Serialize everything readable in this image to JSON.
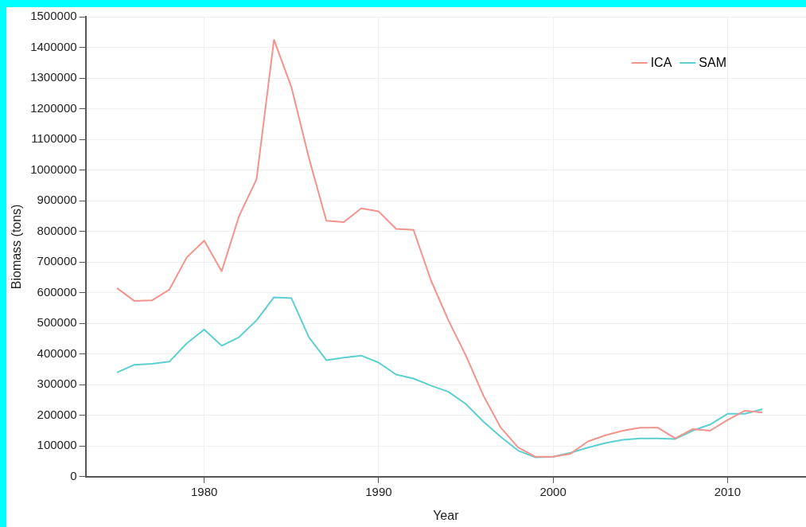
{
  "chart_data": {
    "type": "line",
    "xlabel": "Year",
    "ylabel": "Biomass (tons)",
    "x": [
      1975,
      1976,
      1977,
      1978,
      1979,
      1980,
      1981,
      1982,
      1983,
      1984,
      1985,
      1986,
      1987,
      1988,
      1989,
      1990,
      1991,
      1992,
      1993,
      1994,
      1995,
      1996,
      1997,
      1998,
      1999,
      2000,
      2001,
      2002,
      2003,
      2004,
      2005,
      2006,
      2007,
      2008,
      2009,
      2010,
      2011,
      2012
    ],
    "series": [
      {
        "name": "ICA",
        "color": "#f4928c",
        "values": [
          615000,
          573000,
          575000,
          610000,
          715000,
          770000,
          670000,
          850000,
          970000,
          1425000,
          1270000,
          1040000,
          835000,
          830000,
          875000,
          865000,
          808000,
          805000,
          640000,
          510000,
          395000,
          265000,
          160000,
          95000,
          65000,
          65000,
          75000,
          115000,
          135000,
          150000,
          160000,
          160000,
          125000,
          155000,
          150000,
          185000,
          215000,
          210000
        ]
      },
      {
        "name": "SAM",
        "color": "#5ccfd1",
        "values": [
          340000,
          365000,
          368000,
          375000,
          435000,
          480000,
          427000,
          455000,
          510000,
          585000,
          582000,
          455000,
          380000,
          388000,
          395000,
          372000,
          333000,
          320000,
          297000,
          277000,
          237000,
          180000,
          130000,
          85000,
          63000,
          65000,
          78000,
          95000,
          110000,
          120000,
          125000,
          125000,
          123000,
          150000,
          170000,
          205000,
          205000,
          220000
        ]
      }
    ],
    "xlim": [
      1973.2,
      2014.5
    ],
    "xticks": [
      1980,
      1990,
      2000,
      2010
    ],
    "ylim": [
      0,
      1500000
    ],
    "yticks": [
      0,
      100000,
      200000,
      300000,
      400000,
      500000,
      600000,
      700000,
      800000,
      900000,
      1000000,
      1100000,
      1200000,
      1300000,
      1400000,
      1500000
    ],
    "grid": true,
    "legend": "top right",
    "marker": "none",
    "line_style": "solid"
  }
}
